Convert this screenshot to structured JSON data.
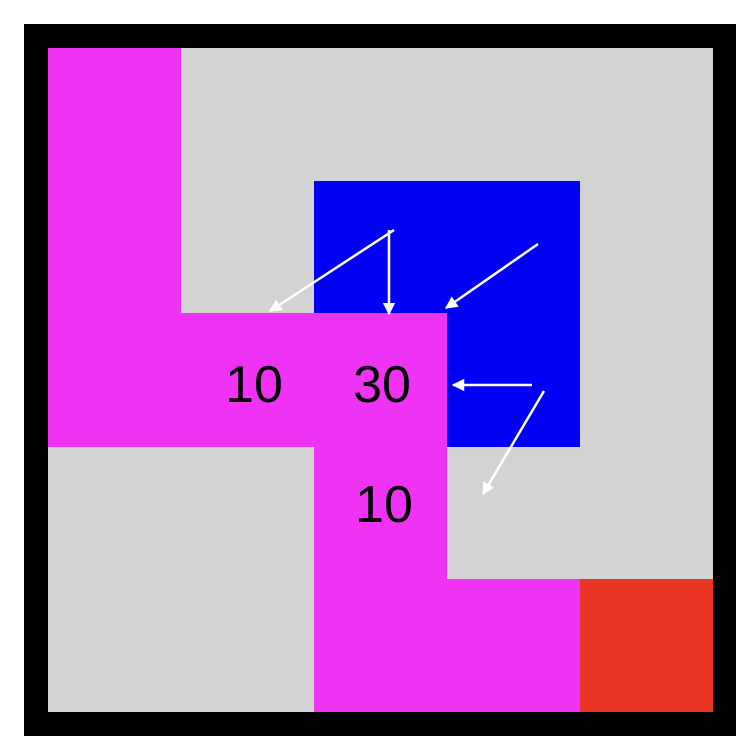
{
  "colors": {
    "frame": "#000000",
    "background": "#d3d3d3",
    "magenta": "#ee33f5",
    "blue": "#0000f5",
    "red": "#e93323",
    "arrow": "#ffffff",
    "label": "#000000"
  },
  "labels": {
    "left": "10",
    "center": "30",
    "below": "10"
  }
}
